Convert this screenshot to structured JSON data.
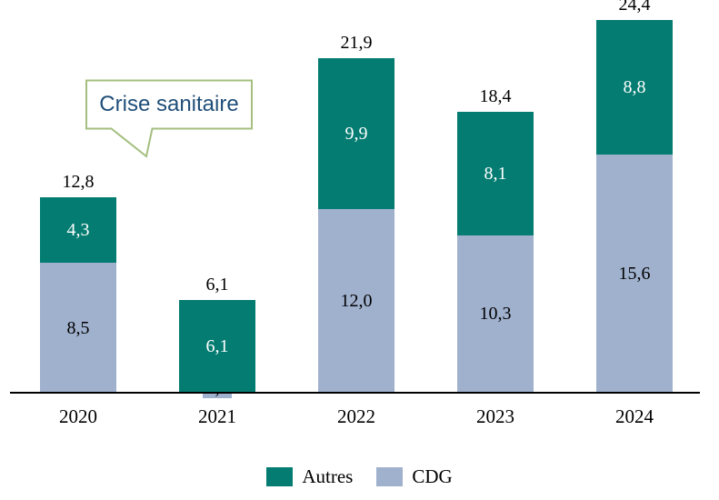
{
  "chart_data": {
    "type": "bar",
    "stacked": true,
    "grid": false,
    "legend_position": "bottom",
    "ylim": [
      0,
      26
    ],
    "categories": [
      "2020",
      "2021",
      "2022",
      "2023",
      "2024"
    ],
    "series": [
      {
        "name": "CDG",
        "color": "#a0b1ce",
        "values": [
          8.5,
          0.0,
          12.0,
          10.3,
          15.6
        ],
        "labels": [
          "8,5",
          "0,0",
          "12,0",
          "10,3",
          "15,6"
        ],
        "label_color": "#000000"
      },
      {
        "name": "Autres",
        "color": "#047c71",
        "values": [
          4.3,
          6.1,
          9.9,
          8.1,
          8.8
        ],
        "labels": [
          "4,3",
          "6,1",
          "9,9",
          "8,1",
          "8,8"
        ],
        "label_color": "#ffffff"
      }
    ],
    "totals": [
      12.8,
      6.1,
      21.9,
      18.4,
      24.4
    ],
    "total_labels": [
      "12,8",
      "6,1",
      "21,9",
      "18,4",
      "24,4"
    ],
    "annotation": {
      "text": "Crise sanitaire",
      "target_category": "2021",
      "text_color": "#1f4e79",
      "border_color": "#a4bf7f"
    },
    "legend": [
      {
        "label": "Autres",
        "color": "#047c71"
      },
      {
        "label": "CDG",
        "color": "#a0b1ce"
      }
    ]
  }
}
